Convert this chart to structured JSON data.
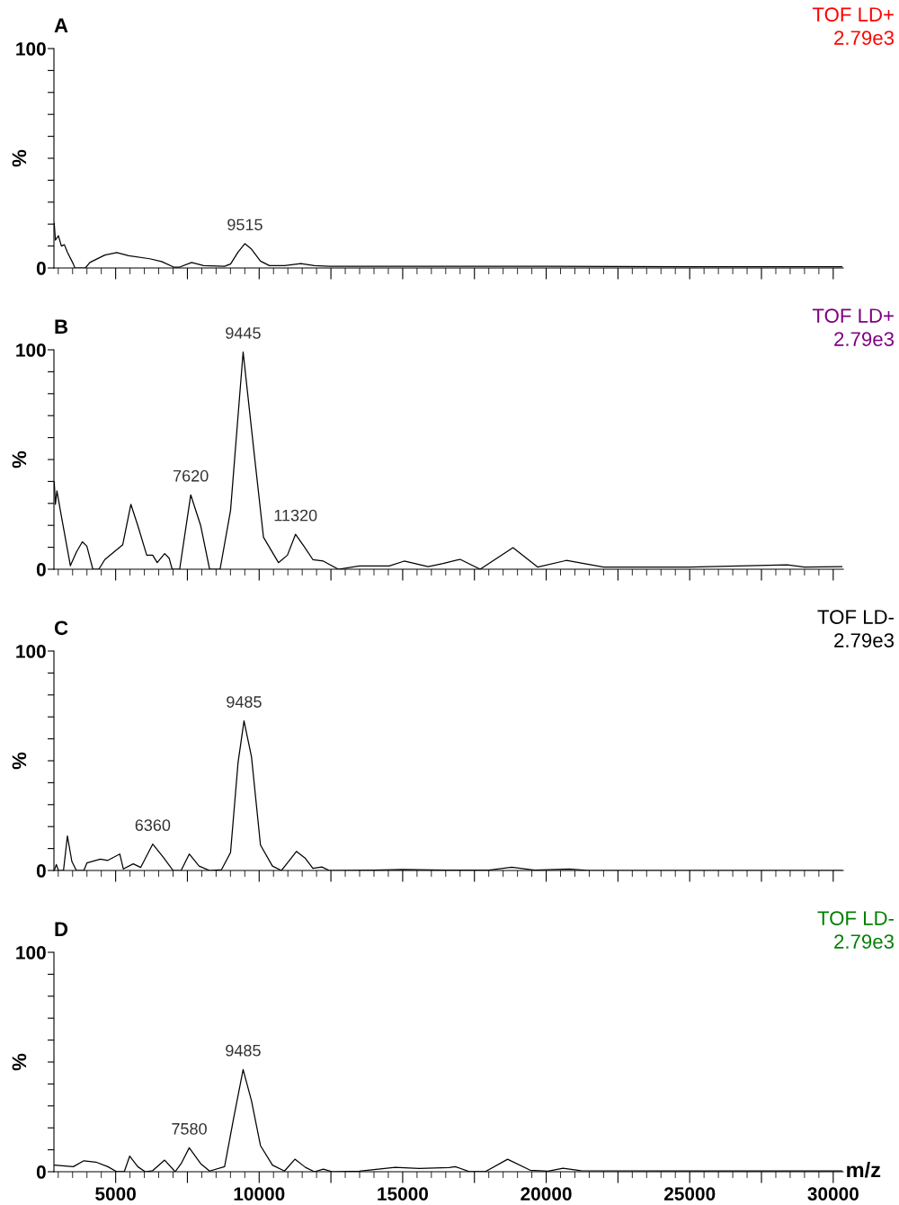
{
  "chart_data": [
    {
      "type": "line",
      "title": "A",
      "ylabel": "%",
      "xlim": [
        2850,
        30350
      ],
      "ylim": [
        0,
        100
      ],
      "tick_labels": "y",
      "grid": false,
      "legend": false,
      "xticks": [
        {
          "value": 5000,
          "label": null
        },
        {
          "value": 7500,
          "label": null
        },
        {
          "value": 10000,
          "label": null
        },
        {
          "value": 12500,
          "label": null
        },
        {
          "value": 15000,
          "label": null
        },
        {
          "value": 17500,
          "label": null
        },
        {
          "value": 20000,
          "label": null
        },
        {
          "value": 22500,
          "label": null
        },
        {
          "value": 25000,
          "label": null
        },
        {
          "value": 27500,
          "label": null
        },
        {
          "value": 30000,
          "label": null
        }
      ],
      "yticks": [
        0,
        {
          "value": 10,
          "label": null
        },
        {
          "value": 20,
          "label": null
        },
        {
          "value": 30,
          "label": null
        },
        {
          "value": 40,
          "label": null
        },
        {
          "value": 50,
          "label": null
        },
        {
          "value": 60,
          "label": null
        },
        {
          "value": 70,
          "label": null
        },
        {
          "value": 80,
          "label": null
        },
        {
          "value": 90,
          "label": null
        },
        100
      ],
      "annotations": [
        "TOF LD+",
        "2.79e3",
        {
          "text": "9515",
          "x": 9504,
          "y": 11.1
        }
      ],
      "series": [
        {
          "color": "#000000",
          "x": [
            2860,
            2902,
            3006,
            3110,
            3214,
            3319,
            3527,
            3580,
            3945,
            4101,
            4623,
            5040,
            5457,
            6187,
            6604,
            7021,
            7230,
            7647,
            8064,
            8795,
            9003,
            9264,
            9504,
            9733,
            10046,
            10359,
            10881,
            11454,
            11924,
            12445,
            16617,
            20000,
            25000,
            30300
          ],
          "values": [
            20.2,
            12.7,
            14.7,
            10.0,
            10.6,
            7.2,
            1.8,
            0,
            0,
            2.5,
            5.9,
            7.0,
            5.6,
            4.2,
            2.9,
            0.4,
            0.4,
            2.5,
            1.1,
            0.8,
            1.8,
            7.2,
            11.1,
            8.6,
            3.1,
            1.1,
            1.1,
            2.0,
            1.1,
            0.8,
            0.8,
            0.8,
            0.6,
            0.6
          ]
        }
      ]
    },
    {
      "type": "line",
      "title": "B",
      "ylabel": "%",
      "xlim": [
        2850,
        30350
      ],
      "ylim": [
        0,
        100
      ],
      "tick_labels": "y",
      "grid": false,
      "legend": false,
      "xticks": [
        {
          "value": 5000,
          "label": null
        },
        {
          "value": 7500,
          "label": null
        },
        {
          "value": 10000,
          "label": null
        },
        {
          "value": 12500,
          "label": null
        },
        {
          "value": 15000,
          "label": null
        },
        {
          "value": 17500,
          "label": null
        },
        {
          "value": 20000,
          "label": null
        },
        {
          "value": 22500,
          "label": null
        },
        {
          "value": 25000,
          "label": null
        },
        {
          "value": 27500,
          "label": null
        },
        {
          "value": 30000,
          "label": null
        }
      ],
      "yticks": [
        0,
        {
          "value": 10,
          "label": null
        },
        {
          "value": 20,
          "label": null
        },
        {
          "value": 30,
          "label": null
        },
        {
          "value": 40,
          "label": null
        },
        {
          "value": 50,
          "label": null
        },
        {
          "value": 60,
          "label": null
        },
        {
          "value": 70,
          "label": null
        },
        {
          "value": 80,
          "label": null
        },
        {
          "value": 90,
          "label": null
        },
        100
      ],
      "annotations": [
        "TOF LD+",
        "2.79e3",
        {
          "text": "9445",
          "x": 9441,
          "y": 99
        },
        {
          "text": "7620",
          "x": 7616,
          "y": 33.9
        },
        {
          "text": "11320",
          "x": 11266,
          "y": 15.9
        }
      ],
      "series": [
        {
          "color": "#000000",
          "x": [
            2860,
            2902,
            2954,
            3110,
            3423,
            3632,
            3840,
            3997,
            4205,
            4414,
            4623,
            4935,
            5248,
            5530,
            5770,
            6083,
            6291,
            6448,
            6708,
            6865,
            6969,
            7230,
            7616,
            7960,
            8273,
            8638,
            9003,
            9441,
            9838,
            10150,
            10672,
            10985,
            11266,
            11559,
            11871,
            12236,
            12758,
            13488,
            14531,
            15053,
            15887,
            16409,
            17000,
            17700,
            18844,
            19700,
            20700,
            22000,
            25000,
            28400,
            29000,
            30300
          ],
          "values": [
            39.8,
            29.6,
            35.7,
            24.1,
            1.6,
            7.8,
            12.5,
            10.5,
            0,
            0,
            4.4,
            7.8,
            11.2,
            29.6,
            20.0,
            6.4,
            6.4,
            3.0,
            7.1,
            5.0,
            0,
            0,
            33.9,
            20.0,
            0,
            0,
            26.8,
            99,
            51.4,
            14.6,
            3.0,
            6.4,
            15.9,
            10.5,
            4.4,
            3.7,
            0,
            1.5,
            1.5,
            3.7,
            1.2,
            2.6,
            4.5,
            0,
            9.8,
            1.0,
            4.0,
            1.0,
            1.0,
            2.0,
            1.0,
            1.2
          ]
        }
      ]
    },
    {
      "type": "line",
      "title": "C",
      "ylabel": "%",
      "xlim": [
        2850,
        30350
      ],
      "ylim": [
        0,
        100
      ],
      "tick_labels": "y",
      "grid": false,
      "legend": false,
      "xticks": [
        {
          "value": 5000,
          "label": null
        },
        {
          "value": 7500,
          "label": null
        },
        {
          "value": 10000,
          "label": null
        },
        {
          "value": 12500,
          "label": null
        },
        {
          "value": 15000,
          "label": null
        },
        {
          "value": 17500,
          "label": null
        },
        {
          "value": 20000,
          "label": null
        },
        {
          "value": 22500,
          "label": null
        },
        {
          "value": 25000,
          "label": null
        },
        {
          "value": 27500,
          "label": null
        },
        {
          "value": 30000,
          "label": null
        }
      ],
      "yticks": [
        0,
        {
          "value": 10,
          "label": null
        },
        {
          "value": 20,
          "label": null
        },
        {
          "value": 30,
          "label": null
        },
        {
          "value": 40,
          "label": null
        },
        {
          "value": 50,
          "label": null
        },
        {
          "value": 60,
          "label": null
        },
        {
          "value": 70,
          "label": null
        },
        {
          "value": 80,
          "label": null
        },
        {
          "value": 90,
          "label": null
        },
        100
      ],
      "annotations": [
        "TOF LD-",
        "2.79e3",
        {
          "text": "9485",
          "x": 9472,
          "y": 68.2
        },
        {
          "text": "6360",
          "x": 6291,
          "y": 12.0
        }
      ],
      "series": [
        {
          "color": "#000000",
          "x": [
            2860,
            2933,
            3006,
            3183,
            3319,
            3475,
            3632,
            3892,
            3997,
            4466,
            4727,
            5144,
            5269,
            5613,
            5874,
            6291,
            6656,
            7001,
            7282,
            7564,
            7908,
            8273,
            8690,
            9003,
            9264,
            9472,
            9733,
            10046,
            10463,
            10776,
            10985,
            11297,
            11611,
            11871,
            12184,
            12445,
            14000,
            15000,
            16500,
            18000,
            18800,
            19600,
            20800,
            21500,
            30300
          ],
          "values": [
            0,
            2.7,
            0,
            0,
            15.7,
            4.1,
            0,
            0,
            3.4,
            5.2,
            4.6,
            7.5,
            0.7,
            3.0,
            1.4,
            12.0,
            6.1,
            0,
            0,
            7.5,
            2.0,
            0,
            0.4,
            8.2,
            49.1,
            68.2,
            51.8,
            11.6,
            2.0,
            0,
            3.4,
            8.7,
            5.5,
            1.0,
            1.6,
            0,
            0.2,
            0.5,
            0.2,
            0.2,
            1.5,
            0.2,
            0.7,
            0,
            0
          ]
        }
      ]
    },
    {
      "type": "line",
      "title": "D",
      "ylabel": "%",
      "xlabel": "m/z",
      "xlim": [
        2850,
        30350
      ],
      "ylim": [
        0,
        100
      ],
      "grid": false,
      "legend": false,
      "xticks": [
        5000,
        {
          "value": 7500,
          "label": null
        },
        10000,
        {
          "value": 12500,
          "label": null
        },
        15000,
        {
          "value": 17500,
          "label": null
        },
        20000,
        {
          "value": 22500,
          "label": null
        },
        25000,
        {
          "value": 27500,
          "label": null
        },
        30000
      ],
      "yticks": [
        0,
        {
          "value": 10,
          "label": null
        },
        {
          "value": 20,
          "label": null
        },
        {
          "value": 30,
          "label": null
        },
        {
          "value": 40,
          "label": null
        },
        {
          "value": 50,
          "label": null
        },
        {
          "value": 60,
          "label": null
        },
        {
          "value": 70,
          "label": null
        },
        {
          "value": 80,
          "label": null
        },
        {
          "value": 90,
          "label": null
        },
        100
      ],
      "annotations": [
        "TOF LD-",
        "2.79e3",
        {
          "text": "9485",
          "x": 9441,
          "y": 46.6
        },
        {
          "text": "7580",
          "x": 7564,
          "y": 10.9
        }
      ],
      "series": [
        {
          "color": "#000000",
          "x": [
            2860,
            3527,
            3892,
            4310,
            4727,
            5040,
            5300,
            5488,
            5770,
            6030,
            6291,
            6708,
            7073,
            7282,
            7564,
            7960,
            8273,
            8795,
            9107,
            9441,
            9733,
            10046,
            10463,
            10881,
            11245,
            11611,
            11924,
            12236,
            12549,
            13488,
            14740,
            15574,
            16617,
            16831,
            17340,
            17872,
            18656,
            19440,
            20066,
            20587,
            21213,
            25000,
            30300
          ],
          "values": [
            3.0,
            2.3,
            5.0,
            4.4,
            2.3,
            0,
            0,
            7.1,
            2.3,
            0,
            0.5,
            5.3,
            0,
            3.7,
            10.9,
            3.7,
            0.3,
            2.3,
            24.1,
            46.6,
            32.3,
            11.9,
            3.0,
            0.3,
            5.7,
            2.0,
            0,
            1.2,
            0,
            0.3,
            2.0,
            1.5,
            1.9,
            2.3,
            0,
            0,
            5.7,
            0.7,
            0.3,
            1.6,
            0.5,
            0.4,
            0.4
          ]
        }
      ]
    }
  ]
}
